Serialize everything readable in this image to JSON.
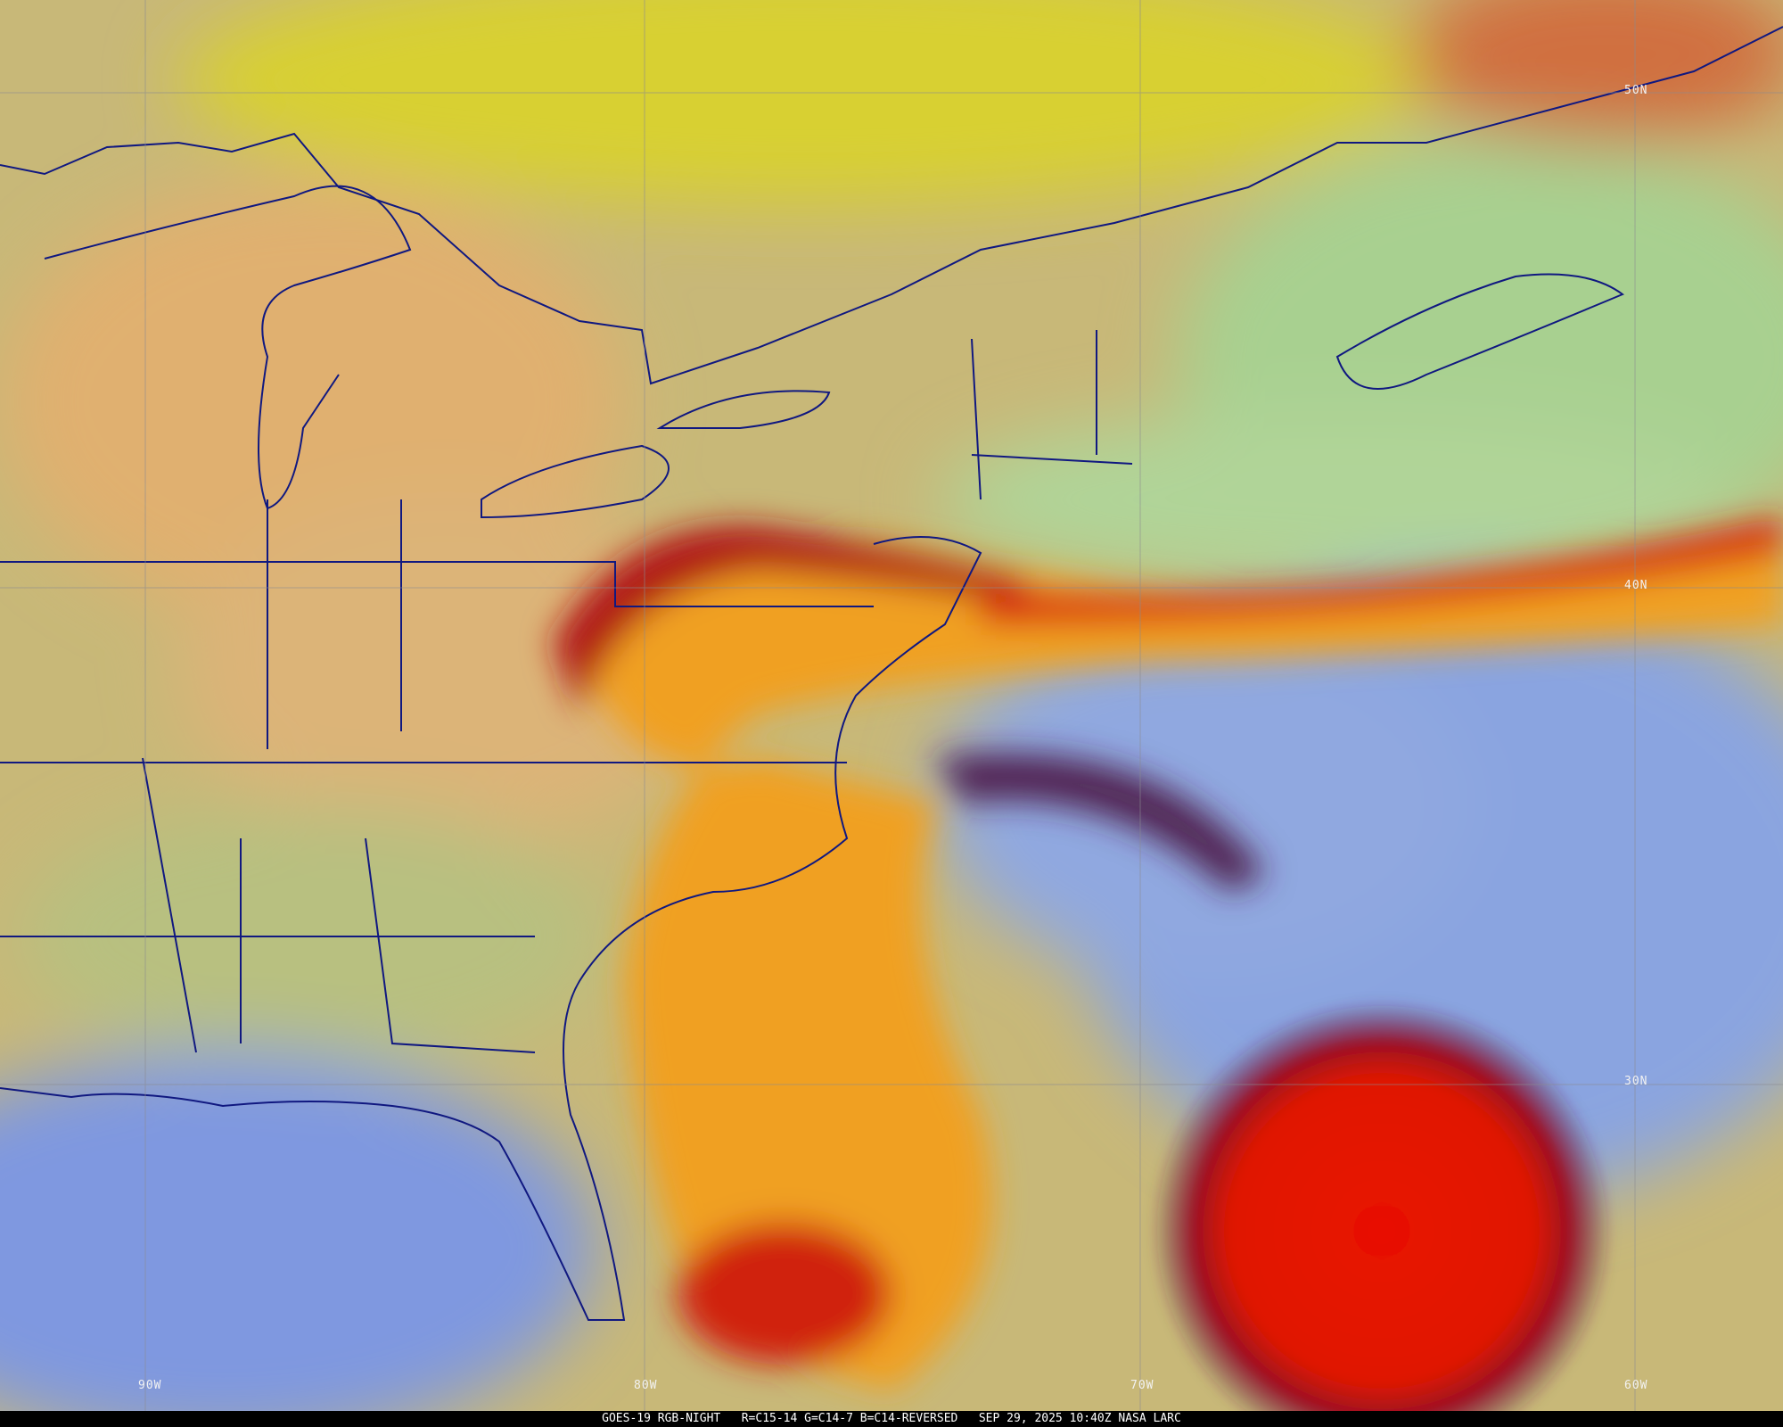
{
  "caption": {
    "satellite": "GOES-19",
    "product": "RGB-NIGHT",
    "channels": "R=C15-14 G=C14-7 B=C14-REVERSED",
    "datetime": "SEP 29, 2025 10:40Z",
    "source": "NASA LARC"
  },
  "graticule": {
    "latitudes": [
      "50N",
      "40N",
      "30N"
    ],
    "longitudes": [
      "90W",
      "80W",
      "70W",
      "60W"
    ]
  },
  "colors": {
    "land_clear": "#d8b070",
    "north_haze": "#d8d030",
    "ocean_clear": "#7f9fe0",
    "storm_core": "#e01000",
    "cloud_band": "#f0a020",
    "boundaries": "#101880"
  }
}
